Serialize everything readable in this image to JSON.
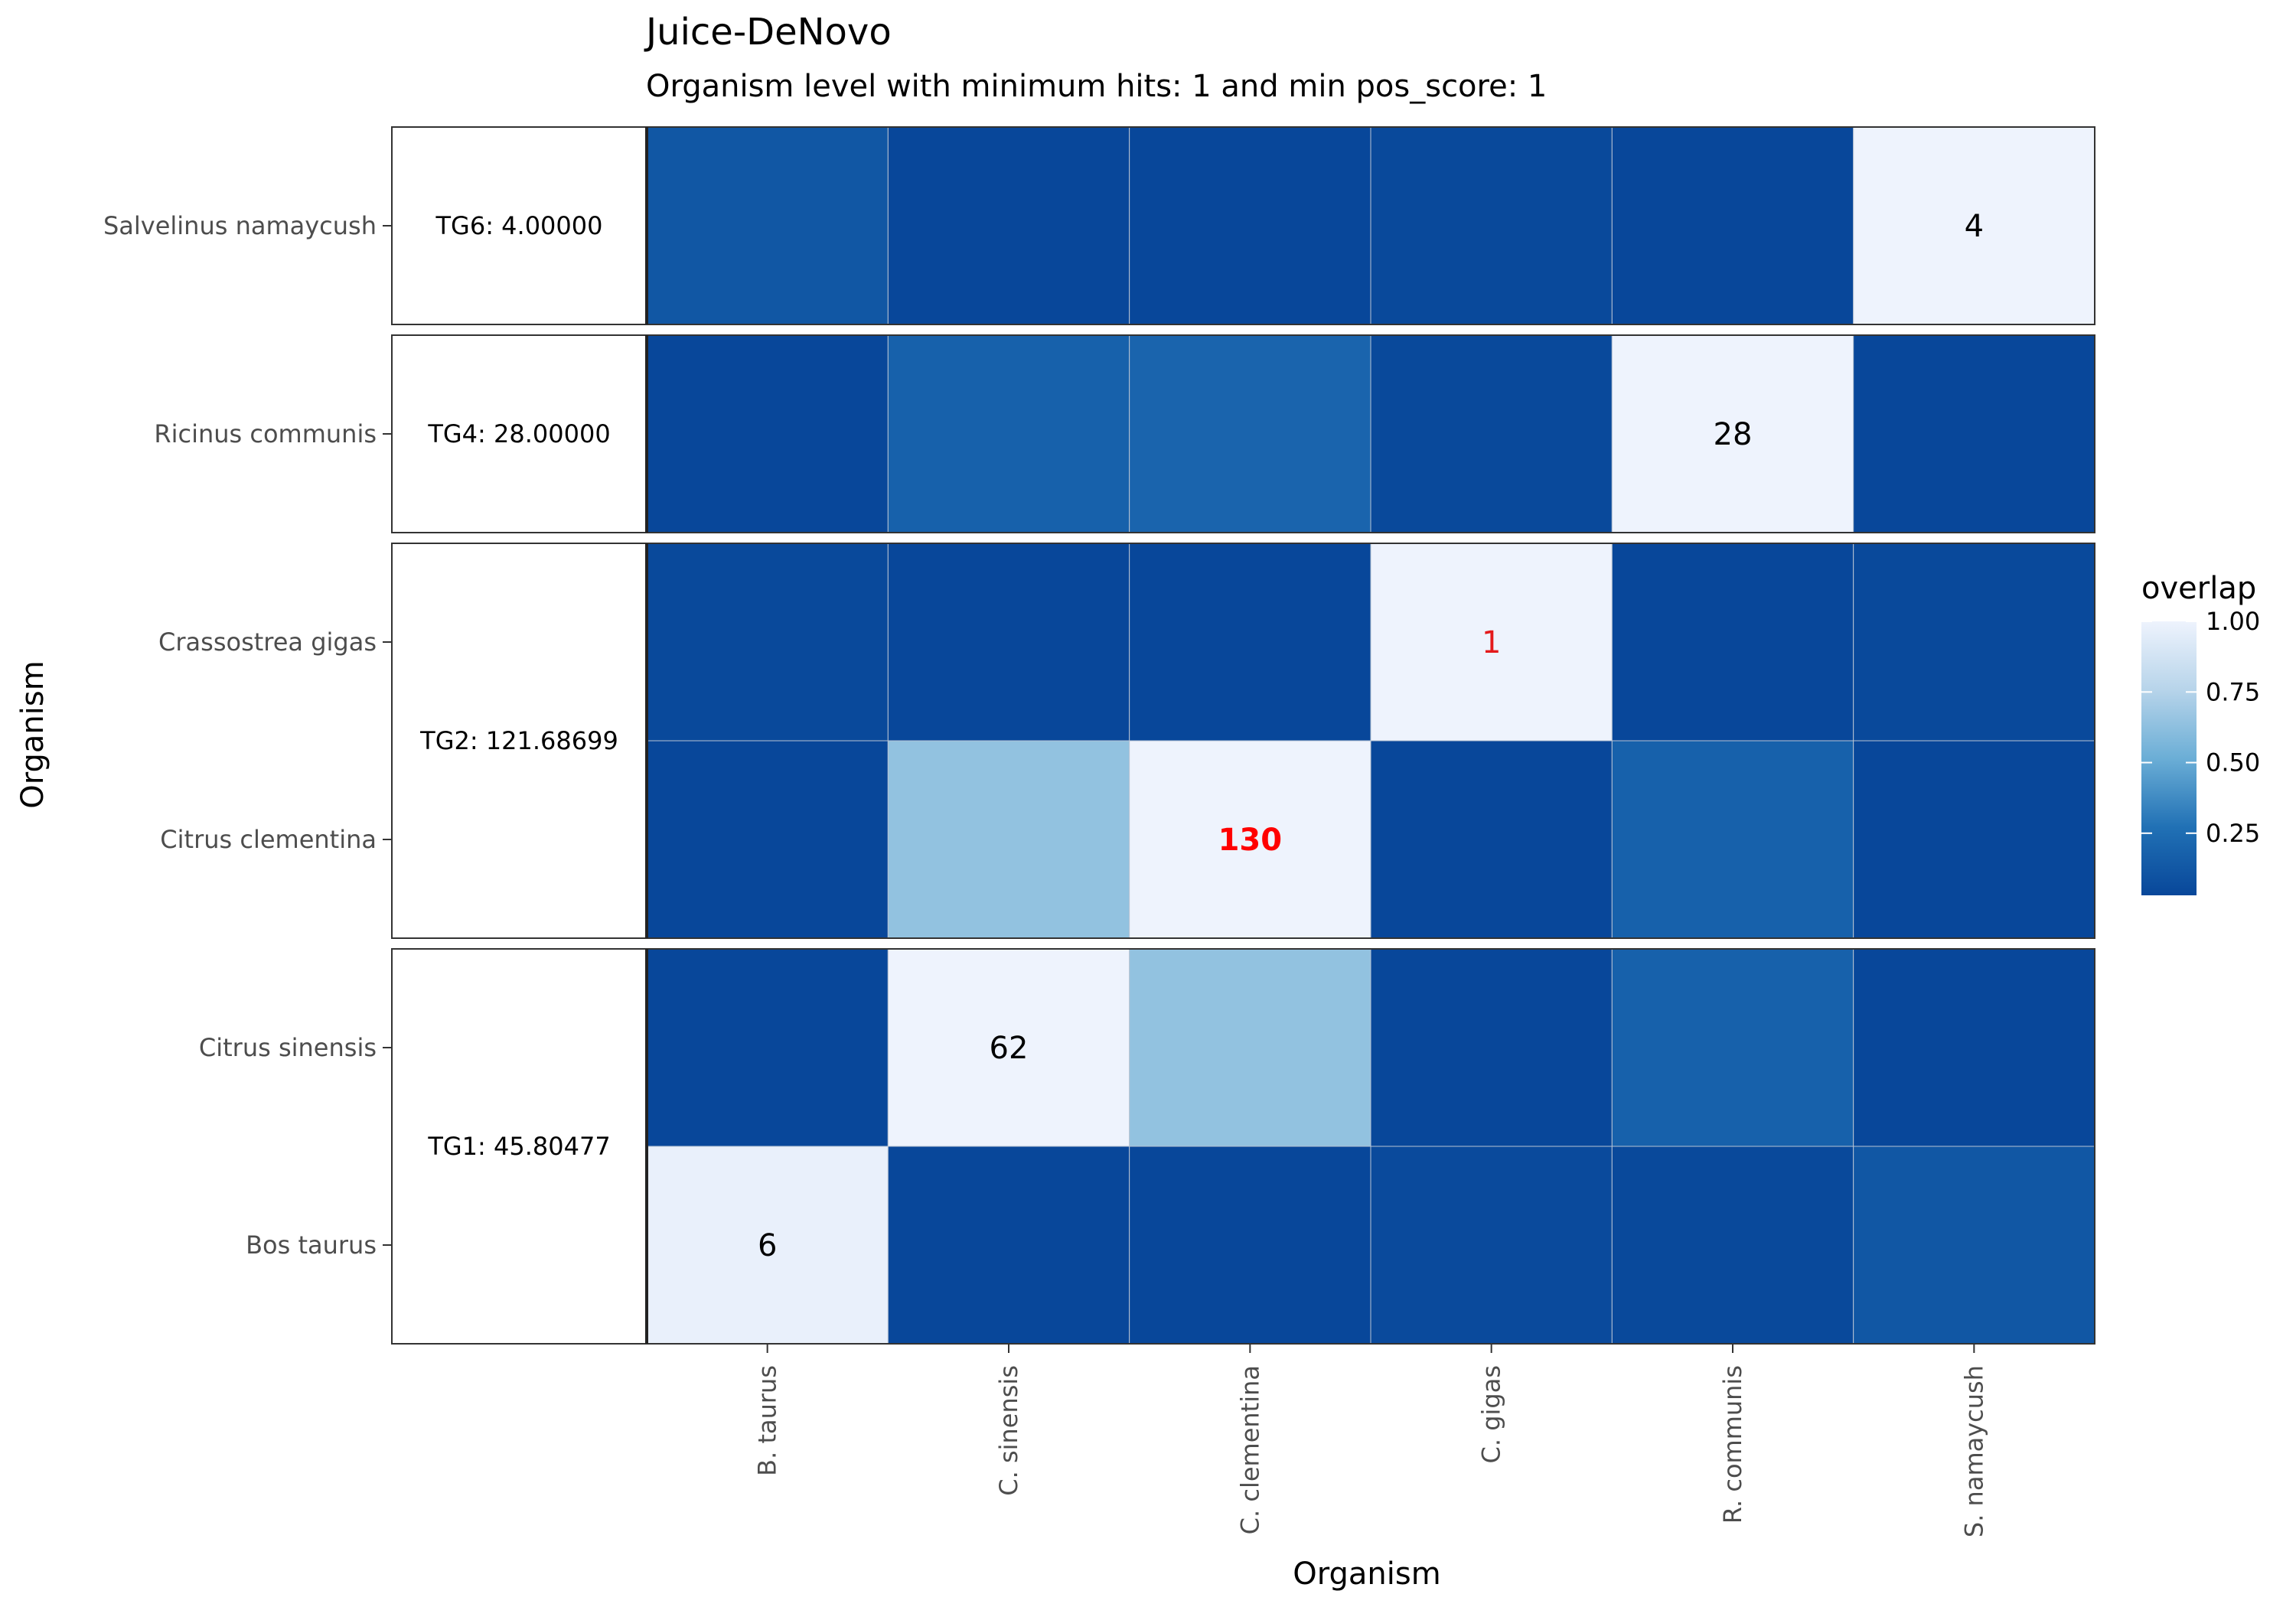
{
  "chart_data": {
    "type": "heatmap",
    "title": "Juice-DeNovo",
    "subtitle": "Organism level with minimum hits: 1 and min pos_score: 1",
    "xlabel": "Organism",
    "ylabel": "Organism",
    "x_categories": [
      "B. taurus",
      "C. sinensis",
      "C. clementina",
      "C. gigas",
      "R. communis",
      "S. namaycush"
    ],
    "rows": [
      {
        "name": "Salvelinus namaycush",
        "group": 0,
        "values": [
          0.12,
          0.02,
          0.02,
          0.04,
          0.02,
          1.0
        ]
      },
      {
        "name": "Ricinus communis",
        "group": 1,
        "values": [
          0.03,
          0.18,
          0.2,
          0.04,
          1.0,
          0.03
        ]
      },
      {
        "name": "Crassostrea gigas",
        "group": 2,
        "values": [
          0.04,
          0.03,
          0.03,
          1.0,
          0.03,
          0.04
        ]
      },
      {
        "name": "Citrus clementina",
        "group": 2,
        "values": [
          0.02,
          0.64,
          1.0,
          0.02,
          0.18,
          0.02
        ]
      },
      {
        "name": "Citrus sinensis",
        "group": 3,
        "values": [
          0.02,
          1.0,
          0.64,
          0.03,
          0.18,
          0.03
        ]
      },
      {
        "name": "Bos taurus",
        "group": 3,
        "values": [
          0.98,
          0.02,
          0.02,
          0.05,
          0.04,
          0.12
        ]
      }
    ],
    "groups": [
      {
        "label": "TG6:   4.00000"
      },
      {
        "label": "TG4:  28.00000"
      },
      {
        "label": "TG2: 121.68699"
      },
      {
        "label": "TG1:  45.80477"
      }
    ],
    "cell_labels": [
      {
        "row": 0,
        "col": 5,
        "text": "4",
        "color": "#000000",
        "bold": false
      },
      {
        "row": 1,
        "col": 4,
        "text": "28",
        "color": "#000000",
        "bold": false
      },
      {
        "row": 2,
        "col": 3,
        "text": "1",
        "color": "#e41a1c",
        "bold": false
      },
      {
        "row": 3,
        "col": 2,
        "text": "130",
        "color": "#ff0000",
        "bold": true
      },
      {
        "row": 4,
        "col": 1,
        "text": "62",
        "color": "#000000",
        "bold": false
      },
      {
        "row": 5,
        "col": 0,
        "text": "6",
        "color": "#000000",
        "bold": false
      }
    ],
    "legend": {
      "title": "overlap",
      "range": [
        0.03,
        1.0
      ],
      "ticks": [
        0.25,
        0.5,
        0.75,
        1.0
      ],
      "tick_labels": [
        "0.25",
        "0.50",
        "0.75",
        "1.00"
      ],
      "placement": "right"
    },
    "colorscale": [
      "#08479a",
      "#2171b5",
      "#6baed6",
      "#b7d4ea",
      "#eef3fd"
    ],
    "grid": false
  }
}
